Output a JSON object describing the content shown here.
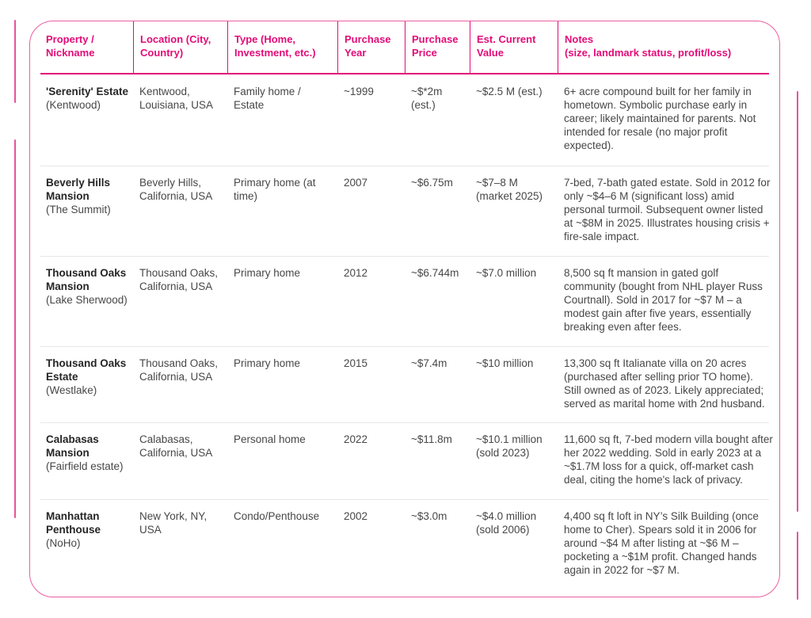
{
  "colors": {
    "accent_pink": "#e30b78",
    "border_pink": "#ec5f9f",
    "row_divider": "#e7e7e7",
    "body_text": "#474747"
  },
  "table": {
    "headers": [
      "Property / Nickname",
      "Location (City, Country)",
      "Type (Home, Investment, etc.)",
      "Purchase Year",
      "Purchase Price",
      "Est. Current Value",
      "Notes\n(size, landmark status, profit/loss)"
    ],
    "rows": [
      {
        "name": "'Serenity' Estate",
        "nickname": "(Kentwood)",
        "location": "Kentwood, Louisiana, USA",
        "type": "Family home / Estate",
        "year": "~1999",
        "price": "~$*2m (est.)",
        "value": "~$2.5 M (est.)",
        "notes": "6+ acre compound built for her family in hometown. Symbolic purchase early in career; likely maintained for parents. Not intended for resale (no major profit expected)."
      },
      {
        "name": "Beverly Hills Mansion",
        "nickname": "(The Summit)",
        "location": "Beverly Hills, California, USA",
        "type": "Primary home (at time)",
        "year": "2007",
        "price": "~$6.75m",
        "value": "~$7–8 M (market 2025)",
        "notes": "7-bed, 7-bath gated estate. Sold in 2012 for only ~$4–6 M (significant loss) amid personal turmoil. Subsequent owner listed at ~$8M in 2025. Illustrates housing crisis + fire-sale impact."
      },
      {
        "name": "Thousand Oaks Mansion",
        "nickname": "(Lake Sherwood)",
        "location": "Thousand Oaks, California, USA",
        "type": "Primary home",
        "year": "2012",
        "price": "~$6.744m",
        "value": "~$7.0 million",
        "notes": "8,500 sq ft mansion in gated golf community (bought from NHL player Russ Courtnall). Sold in 2017 for ~$7 M – a modest gain after five years, essentially breaking even after fees."
      },
      {
        "name": "Thousand Oaks Estate",
        "nickname": "(Westlake)",
        "location": "Thousand Oaks, California, USA",
        "type": "Primary home",
        "year": "2015",
        "price": "~$7.4m",
        "value": "~$10 million",
        "notes": "13,300 sq ft Italianate villa on 20 acres (purchased after selling prior TO home). Still owned as of 2023. Likely appreciated; served as marital home with 2nd husband."
      },
      {
        "name": "Calabasas Mansion",
        "nickname": "(Fairfield estate)",
        "location": "Calabasas, California, USA",
        "type": "Personal home",
        "year": "2022",
        "price": "~$11.8m",
        "value": "~$10.1 million (sold 2023)",
        "notes": "11,600 sq ft, 7-bed modern villa bought after her 2022 wedding. Sold in early 2023 at a ~$1.7M loss for a quick, off-market cash deal, citing the home's lack of privacy."
      },
      {
        "name": "Manhattan Penthouse",
        "nickname": "(NoHo)",
        "location": "New York, NY, USA",
        "type": "Condo/Penthouse",
        "year": "2002",
        "price": "~$3.0m",
        "value": "~$4.0 million (sold 2006)",
        "notes": "4,400 sq ft loft in NY’s Silk Building (once home to Cher). Spears sold it in 2006 for around ~$4 M after listing at ~$6 M – pocketing a ~$1M profit. Changed hands again in 2022 for ~$7 M."
      }
    ]
  }
}
